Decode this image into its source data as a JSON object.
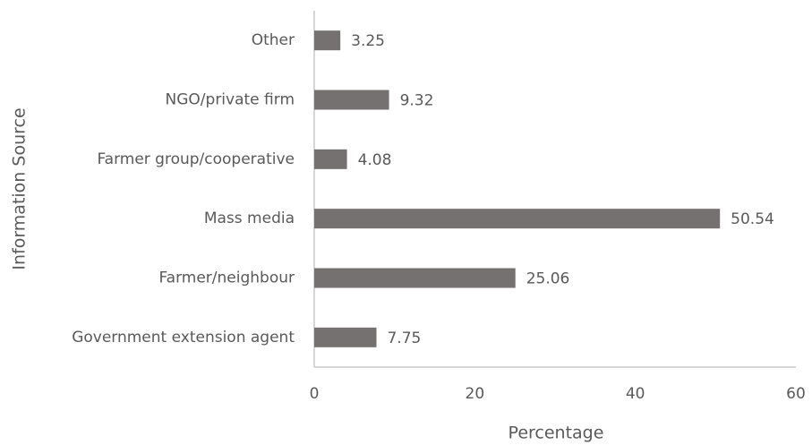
{
  "chart_data": {
    "type": "hbar",
    "categories": [
      "Other",
      "NGO/private firm",
      "Farmer group/cooperative",
      "Mass media",
      "Farmer/neighbour",
      "Government extension agent"
    ],
    "values": [
      3.25,
      9.32,
      4.08,
      50.54,
      25.06,
      7.75
    ],
    "color": "#767171",
    "xlim": [
      0,
      60
    ],
    "xticks": [
      0,
      20,
      40,
      60
    ],
    "xlabel": "Percentage",
    "ylabel": "Information Source",
    "grid": false
  }
}
